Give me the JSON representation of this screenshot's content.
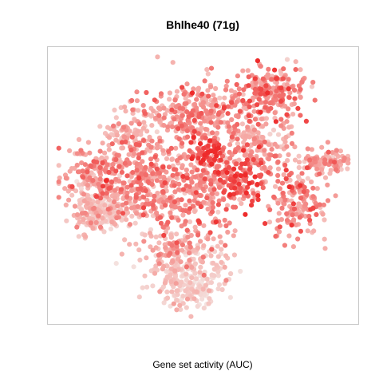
{
  "chart_data": {
    "type": "scatter",
    "title": "Bhlhe40 (71g)",
    "xlabel": "Gene set activity (AUC)",
    "ylabel": "",
    "grid": false,
    "legend": "none",
    "x_ticks_shown": false,
    "y_ticks_shown": false,
    "color_scale": {
      "low": "#f4e2df",
      "mid": "#f5aaa6",
      "high": "#ee2b2b",
      "highlight": "#ff3030"
    },
    "clusters": [
      {
        "name": "upper-center",
        "cx": 0.47,
        "cy": 0.78,
        "sx": 0.09,
        "sy": 0.06,
        "n": 260,
        "level": 0.58
      },
      {
        "name": "upper-right-top",
        "cx": 0.72,
        "cy": 0.86,
        "sx": 0.06,
        "sy": 0.05,
        "n": 200,
        "level": 0.62
      },
      {
        "name": "upper-right-mid",
        "cx": 0.68,
        "cy": 0.66,
        "sx": 0.07,
        "sy": 0.06,
        "n": 180,
        "level": 0.5
      },
      {
        "name": "upper-left",
        "cx": 0.28,
        "cy": 0.69,
        "sx": 0.06,
        "sy": 0.06,
        "n": 130,
        "level": 0.45
      },
      {
        "name": "left-center",
        "cx": 0.15,
        "cy": 0.55,
        "sx": 0.07,
        "sy": 0.06,
        "n": 200,
        "level": 0.55
      },
      {
        "name": "left-lower",
        "cx": 0.14,
        "cy": 0.42,
        "sx": 0.05,
        "sy": 0.05,
        "n": 120,
        "level": 0.35
      },
      {
        "name": "left-pale",
        "cx": 0.16,
        "cy": 0.4,
        "sx": 0.04,
        "sy": 0.03,
        "n": 80,
        "level": 0.1
      },
      {
        "name": "center-left",
        "cx": 0.33,
        "cy": 0.5,
        "sx": 0.07,
        "sy": 0.08,
        "n": 230,
        "level": 0.55
      },
      {
        "name": "center",
        "cx": 0.5,
        "cy": 0.5,
        "sx": 0.07,
        "sy": 0.09,
        "n": 240,
        "level": 0.58
      },
      {
        "name": "center-hot",
        "cx": 0.5,
        "cy": 0.62,
        "sx": 0.03,
        "sy": 0.03,
        "n": 60,
        "level": 0.9
      },
      {
        "name": "center-right-hot",
        "cx": 0.63,
        "cy": 0.53,
        "sx": 0.04,
        "sy": 0.04,
        "n": 90,
        "level": 0.82
      },
      {
        "name": "right-cluster",
        "cx": 0.82,
        "cy": 0.45,
        "sx": 0.05,
        "sy": 0.07,
        "n": 160,
        "level": 0.58
      },
      {
        "name": "far-right",
        "cx": 0.92,
        "cy": 0.59,
        "sx": 0.04,
        "sy": 0.03,
        "n": 90,
        "level": 0.5
      },
      {
        "name": "bottom-upper",
        "cx": 0.42,
        "cy": 0.26,
        "sx": 0.07,
        "sy": 0.05,
        "n": 150,
        "level": 0.42
      },
      {
        "name": "bottom-lower",
        "cx": 0.45,
        "cy": 0.15,
        "sx": 0.07,
        "sy": 0.05,
        "n": 160,
        "level": 0.2
      },
      {
        "name": "bottom-pale",
        "cx": 0.46,
        "cy": 0.09,
        "sx": 0.04,
        "sy": 0.03,
        "n": 60,
        "level": 0.05
      }
    ]
  }
}
